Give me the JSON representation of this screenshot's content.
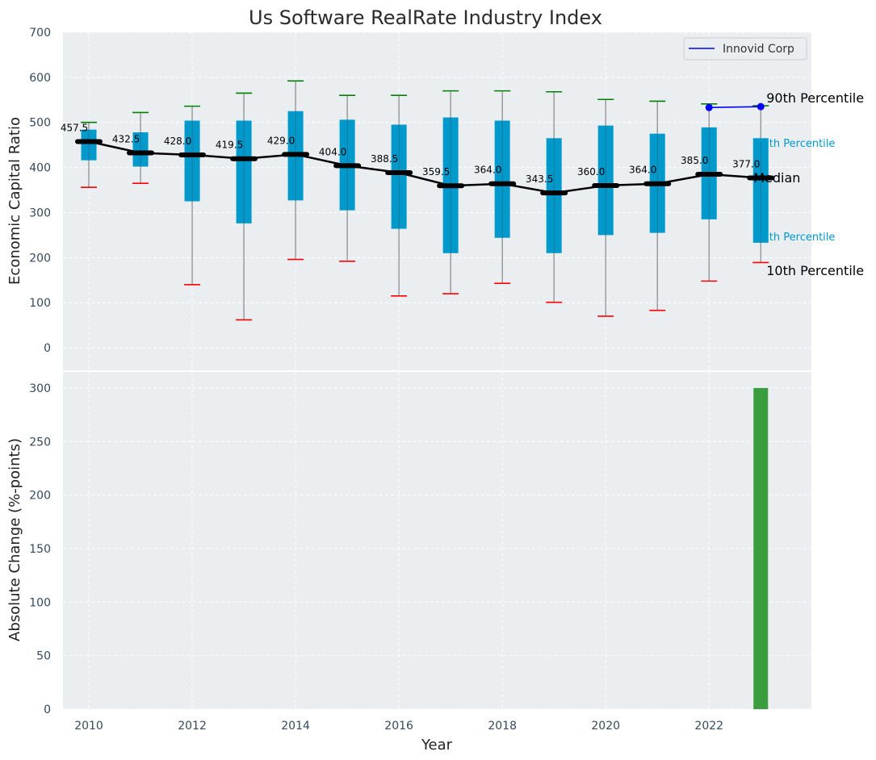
{
  "chart_data": [
    {
      "type": "box",
      "title": "Us Software RealRate Industry Index",
      "ylabel": "Economic Capital Ratio",
      "ylim": [
        -50,
        700
      ],
      "yticks": [
        0,
        100,
        200,
        300,
        400,
        500,
        600,
        700
      ],
      "grid": true,
      "legend": {
        "position": "top-right",
        "entries": [
          "Innovid Corp"
        ]
      },
      "years": [
        2010,
        2011,
        2012,
        2013,
        2014,
        2015,
        2016,
        2017,
        2018,
        2019,
        2020,
        2021,
        2022,
        2023
      ],
      "p90": [
        500,
        522,
        536,
        565,
        592,
        560,
        560,
        570,
        570,
        568,
        551,
        547,
        541,
        537
      ],
      "q3": [
        484,
        478,
        504,
        504,
        525,
        506,
        495,
        511,
        504,
        465,
        493,
        475,
        489,
        465
      ],
      "median": [
        457.5,
        432.5,
        428.0,
        419.5,
        429.0,
        404.0,
        388.5,
        359.5,
        364.0,
        343.5,
        360.0,
        364.0,
        385.0,
        377.0
      ],
      "median_labels": [
        "457.5",
        "432.5",
        "428.0",
        "419.5",
        "429.0",
        "404.0",
        "388.5",
        "359.5",
        "364.0",
        "343.5",
        "360.0",
        "364.0",
        "385.0",
        "377.0"
      ],
      "q1": [
        416,
        402,
        325,
        276,
        327,
        305,
        264,
        210,
        244,
        210,
        250,
        255,
        285,
        233
      ],
      "p10": [
        356,
        365,
        140,
        62,
        196,
        192,
        115,
        120,
        143,
        101,
        70,
        83,
        148,
        189
      ],
      "company": {
        "name": "Innovid Corp",
        "x": [
          2022,
          2023
        ],
        "y": [
          533,
          535
        ],
        "color": "#0000ff"
      },
      "box_color": "#0099cc",
      "p90_color": "#008000",
      "p10_color": "#ff0000",
      "annotations": {
        "p90": "90th Percentile",
        "p75": "75th Percentile",
        "median": "Median",
        "p25": "25th Percentile",
        "p10": "10th Percentile"
      }
    },
    {
      "type": "bar",
      "ylabel": "Absolute Change (%-points)",
      "xlabel": "Year",
      "ylim": [
        0,
        315
      ],
      "yticks": [
        0,
        50,
        100,
        150,
        200,
        250,
        300
      ],
      "xticks": [
        2010,
        2012,
        2014,
        2016,
        2018,
        2020,
        2022
      ],
      "grid": true,
      "x": [
        2023
      ],
      "values": [
        300
      ],
      "bar_color": "#3a9e3f"
    }
  ]
}
